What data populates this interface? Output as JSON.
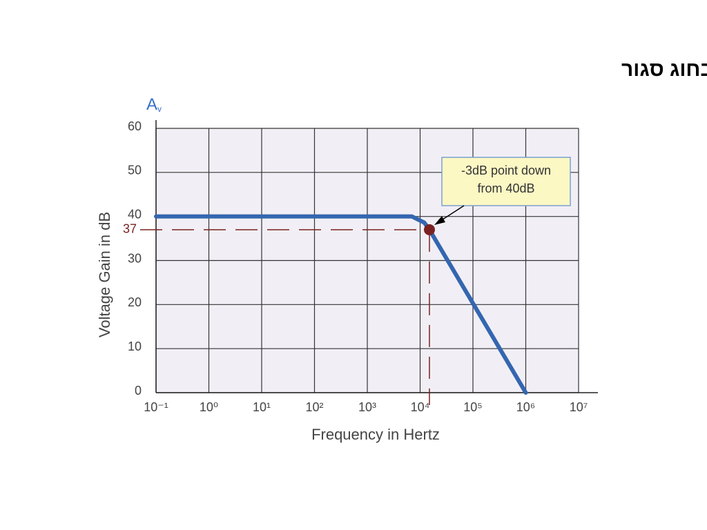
{
  "chart_data": {
    "type": "line",
    "title": "מגבר שרת (אופרטיבי) - הגבר בחוג סגור",
    "y_symbol": "A",
    "y_symbol_sub": "v",
    "y_label": "Voltage Gain in dB",
    "x_label": "Frequency in Hertz",
    "x_scale": "log",
    "xlim": [
      0.1,
      10000000
    ],
    "xticks": [
      {
        "value": 0.1,
        "label": "10⁻¹"
      },
      {
        "value": 1,
        "label": "10⁰"
      },
      {
        "value": 10,
        "label": "10¹"
      },
      {
        "value": 100,
        "label": "10²"
      },
      {
        "value": 1000,
        "label": "10³"
      },
      {
        "value": 10000,
        "label": "10⁴"
      },
      {
        "value": 100000,
        "label": "10⁵"
      },
      {
        "value": 1000000,
        "label": "10⁶"
      },
      {
        "value": 10000000,
        "label": "10⁷"
      }
    ],
    "ylim": [
      0,
      60
    ],
    "yticks": [
      0,
      10,
      20,
      30,
      40,
      50,
      60
    ],
    "grid": true,
    "x": [
      0.1,
      7000,
      12000,
      15000,
      1000000
    ],
    "series": [
      {
        "color": "#3466b0",
        "values": [
          40,
          40,
          38.6,
          37,
          0
        ]
      }
    ],
    "marker": {
      "x": 15000,
      "y": 37,
      "color": "#7a2222"
    },
    "annotation": [
      "-3dB point down",
      "from 40dB"
    ]
  }
}
